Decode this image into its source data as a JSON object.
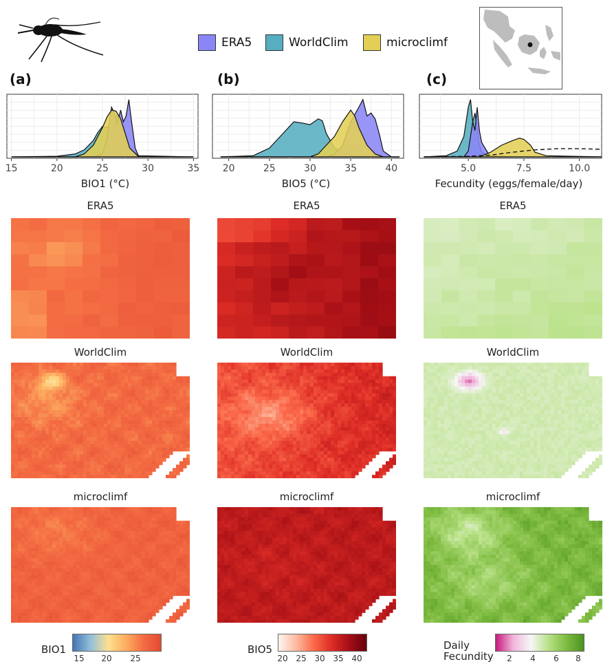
{
  "legend": {
    "items": [
      {
        "name": "ERA5",
        "color": "#8a86f5"
      },
      {
        "name": "WorldClim",
        "color": "#56aec0"
      },
      {
        "name": "microclimf",
        "color": "#e3cf55"
      }
    ]
  },
  "panels": {
    "a": {
      "letter": "(a)",
      "xlabel": "BIO1 (°C)",
      "ticks": [
        "15",
        "20",
        "25",
        "30",
        "35"
      ]
    },
    "b": {
      "letter": "(b)",
      "xlabel": "BIO5 (°C)",
      "ticks": [
        "20",
        "25",
        "30",
        "35",
        "40"
      ]
    },
    "c": {
      "letter": "(c)",
      "xlabel": "Fecundity (eggs/female/day)",
      "ticks": [
        "5.0",
        "7.5",
        "10.0"
      ]
    }
  },
  "map_titles": {
    "row1": "ERA5",
    "row2": "WorldClim",
    "row3": "microclimf"
  },
  "colorbars": {
    "bio1": {
      "label": "BIO1",
      "ticks": [
        "15",
        "20",
        "25"
      ],
      "colors": [
        "#4575b4",
        "#91bfdb",
        "#fee090",
        "#fdae61",
        "#f46d43",
        "#e34a33"
      ]
    },
    "bio5": {
      "label": "BIO5",
      "ticks": [
        "20",
        "25",
        "30",
        "35",
        "40"
      ],
      "colors": [
        "#fff5f0",
        "#fcbba1",
        "#fb6a4a",
        "#de2d26",
        "#a50f15",
        "#67000d"
      ]
    },
    "fec": {
      "label_line1": "Daily",
      "label_line2": "Fecundity",
      "ticks": [
        "2",
        "4",
        "6",
        "8"
      ],
      "colors": [
        "#c51b7d",
        "#f1b6da",
        "#f7f7f7",
        "#b8e186",
        "#7fbc41",
        "#4d9221"
      ]
    }
  },
  "chart_data": [
    {
      "type": "area",
      "title": "(a)",
      "xlabel": "BIO1 (°C)",
      "xlim": [
        14.5,
        35.5
      ],
      "grid": true,
      "series": [
        {
          "name": "WorldClim",
          "x": [
            15,
            20,
            22,
            23,
            24,
            24.5,
            25,
            25.5,
            26,
            26.3,
            26.6,
            27,
            27.5,
            28,
            29,
            35
          ],
          "y": [
            0,
            0.01,
            0.05,
            0.12,
            0.28,
            0.42,
            0.52,
            0.5,
            0.55,
            0.6,
            0.72,
            0.58,
            0.4,
            0.15,
            0.02,
            0
          ]
        },
        {
          "name": "ERA5",
          "x": [
            15,
            24,
            25,
            25.5,
            26,
            26.3,
            26.6,
            27,
            27.3,
            27.6,
            27.9,
            28.2,
            28.6,
            29,
            35
          ],
          "y": [
            0,
            0,
            0.05,
            0.3,
            0.85,
            0.75,
            0.55,
            0.8,
            0.6,
            0.7,
            0.98,
            0.6,
            0.15,
            0,
            0
          ]
        },
        {
          "name": "microclimf",
          "x": [
            15,
            22,
            23,
            24,
            25,
            25.5,
            26,
            26.5,
            27,
            27.5,
            28,
            29,
            35
          ],
          "y": [
            0,
            0,
            0.05,
            0.2,
            0.5,
            0.68,
            0.8,
            0.78,
            0.65,
            0.4,
            0.15,
            0,
            0
          ]
        }
      ]
    },
    {
      "type": "area",
      "title": "(b)",
      "xlabel": "BIO5 (°C)",
      "xlim": [
        18,
        41.5
      ],
      "grid": true,
      "series": [
        {
          "name": "WorldClim",
          "x": [
            19,
            23,
            25,
            27,
            28,
            29,
            30,
            31,
            31.5,
            32,
            33,
            34,
            35,
            36,
            38,
            41
          ],
          "y": [
            0,
            0.02,
            0.15,
            0.45,
            0.6,
            0.58,
            0.55,
            0.65,
            0.62,
            0.4,
            0.15,
            0.08,
            0.05,
            0.02,
            0,
            0
          ]
        },
        {
          "name": "ERA5",
          "x": [
            19,
            32,
            33,
            34,
            35,
            36,
            36.5,
            37,
            37.5,
            38,
            38.5,
            39,
            40,
            41
          ],
          "y": [
            0,
            0,
            0.05,
            0.2,
            0.6,
            0.85,
            0.98,
            0.7,
            0.75,
            0.65,
            0.4,
            0.1,
            0,
            0
          ]
        },
        {
          "name": "microclimf",
          "x": [
            19,
            30,
            31,
            32,
            33,
            34,
            35,
            35.5,
            36,
            37,
            38,
            39,
            41
          ],
          "y": [
            0,
            0,
            0.05,
            0.2,
            0.35,
            0.6,
            0.8,
            0.7,
            0.5,
            0.2,
            0.05,
            0,
            0
          ]
        }
      ]
    },
    {
      "type": "area",
      "title": "(c)",
      "xlabel": "Fecundity (eggs/female/day)",
      "xlim": [
        2.8,
        11.0
      ],
      "grid": true,
      "series": [
        {
          "name": "WorldClim",
          "x": [
            3,
            4,
            4.5,
            4.8,
            5,
            5.1,
            5.2,
            5.3,
            5.4,
            5.5,
            5.6,
            5.8,
            6,
            7,
            11
          ],
          "y": [
            0,
            0.02,
            0.1,
            0.35,
            0.85,
            0.98,
            0.6,
            0.75,
            0.5,
            0.2,
            0.08,
            0.04,
            0.02,
            0,
            0
          ]
        },
        {
          "name": "ERA5",
          "x": [
            3,
            4.8,
            5,
            5.2,
            5.3,
            5.4,
            5.5,
            5.6,
            5.8,
            6,
            11
          ],
          "y": [
            0,
            0,
            0.1,
            0.6,
            0.45,
            0.85,
            0.45,
            0.25,
            0.12,
            0,
            0
          ]
        },
        {
          "name": "microclimf",
          "x": [
            3,
            5.5,
            6,
            6.5,
            7,
            7.3,
            7.5,
            7.8,
            8,
            8.5,
            11
          ],
          "y": [
            0,
            0,
            0.08,
            0.2,
            0.28,
            0.32,
            0.3,
            0.2,
            0.08,
            0.02,
            0
          ]
        },
        {
          "name": "dashed",
          "x": [
            3,
            5,
            6,
            7,
            8,
            9,
            10,
            11
          ],
          "y": [
            0,
            0.01,
            0.03,
            0.08,
            0.12,
            0.14,
            0.14,
            0.13
          ]
        }
      ]
    }
  ]
}
